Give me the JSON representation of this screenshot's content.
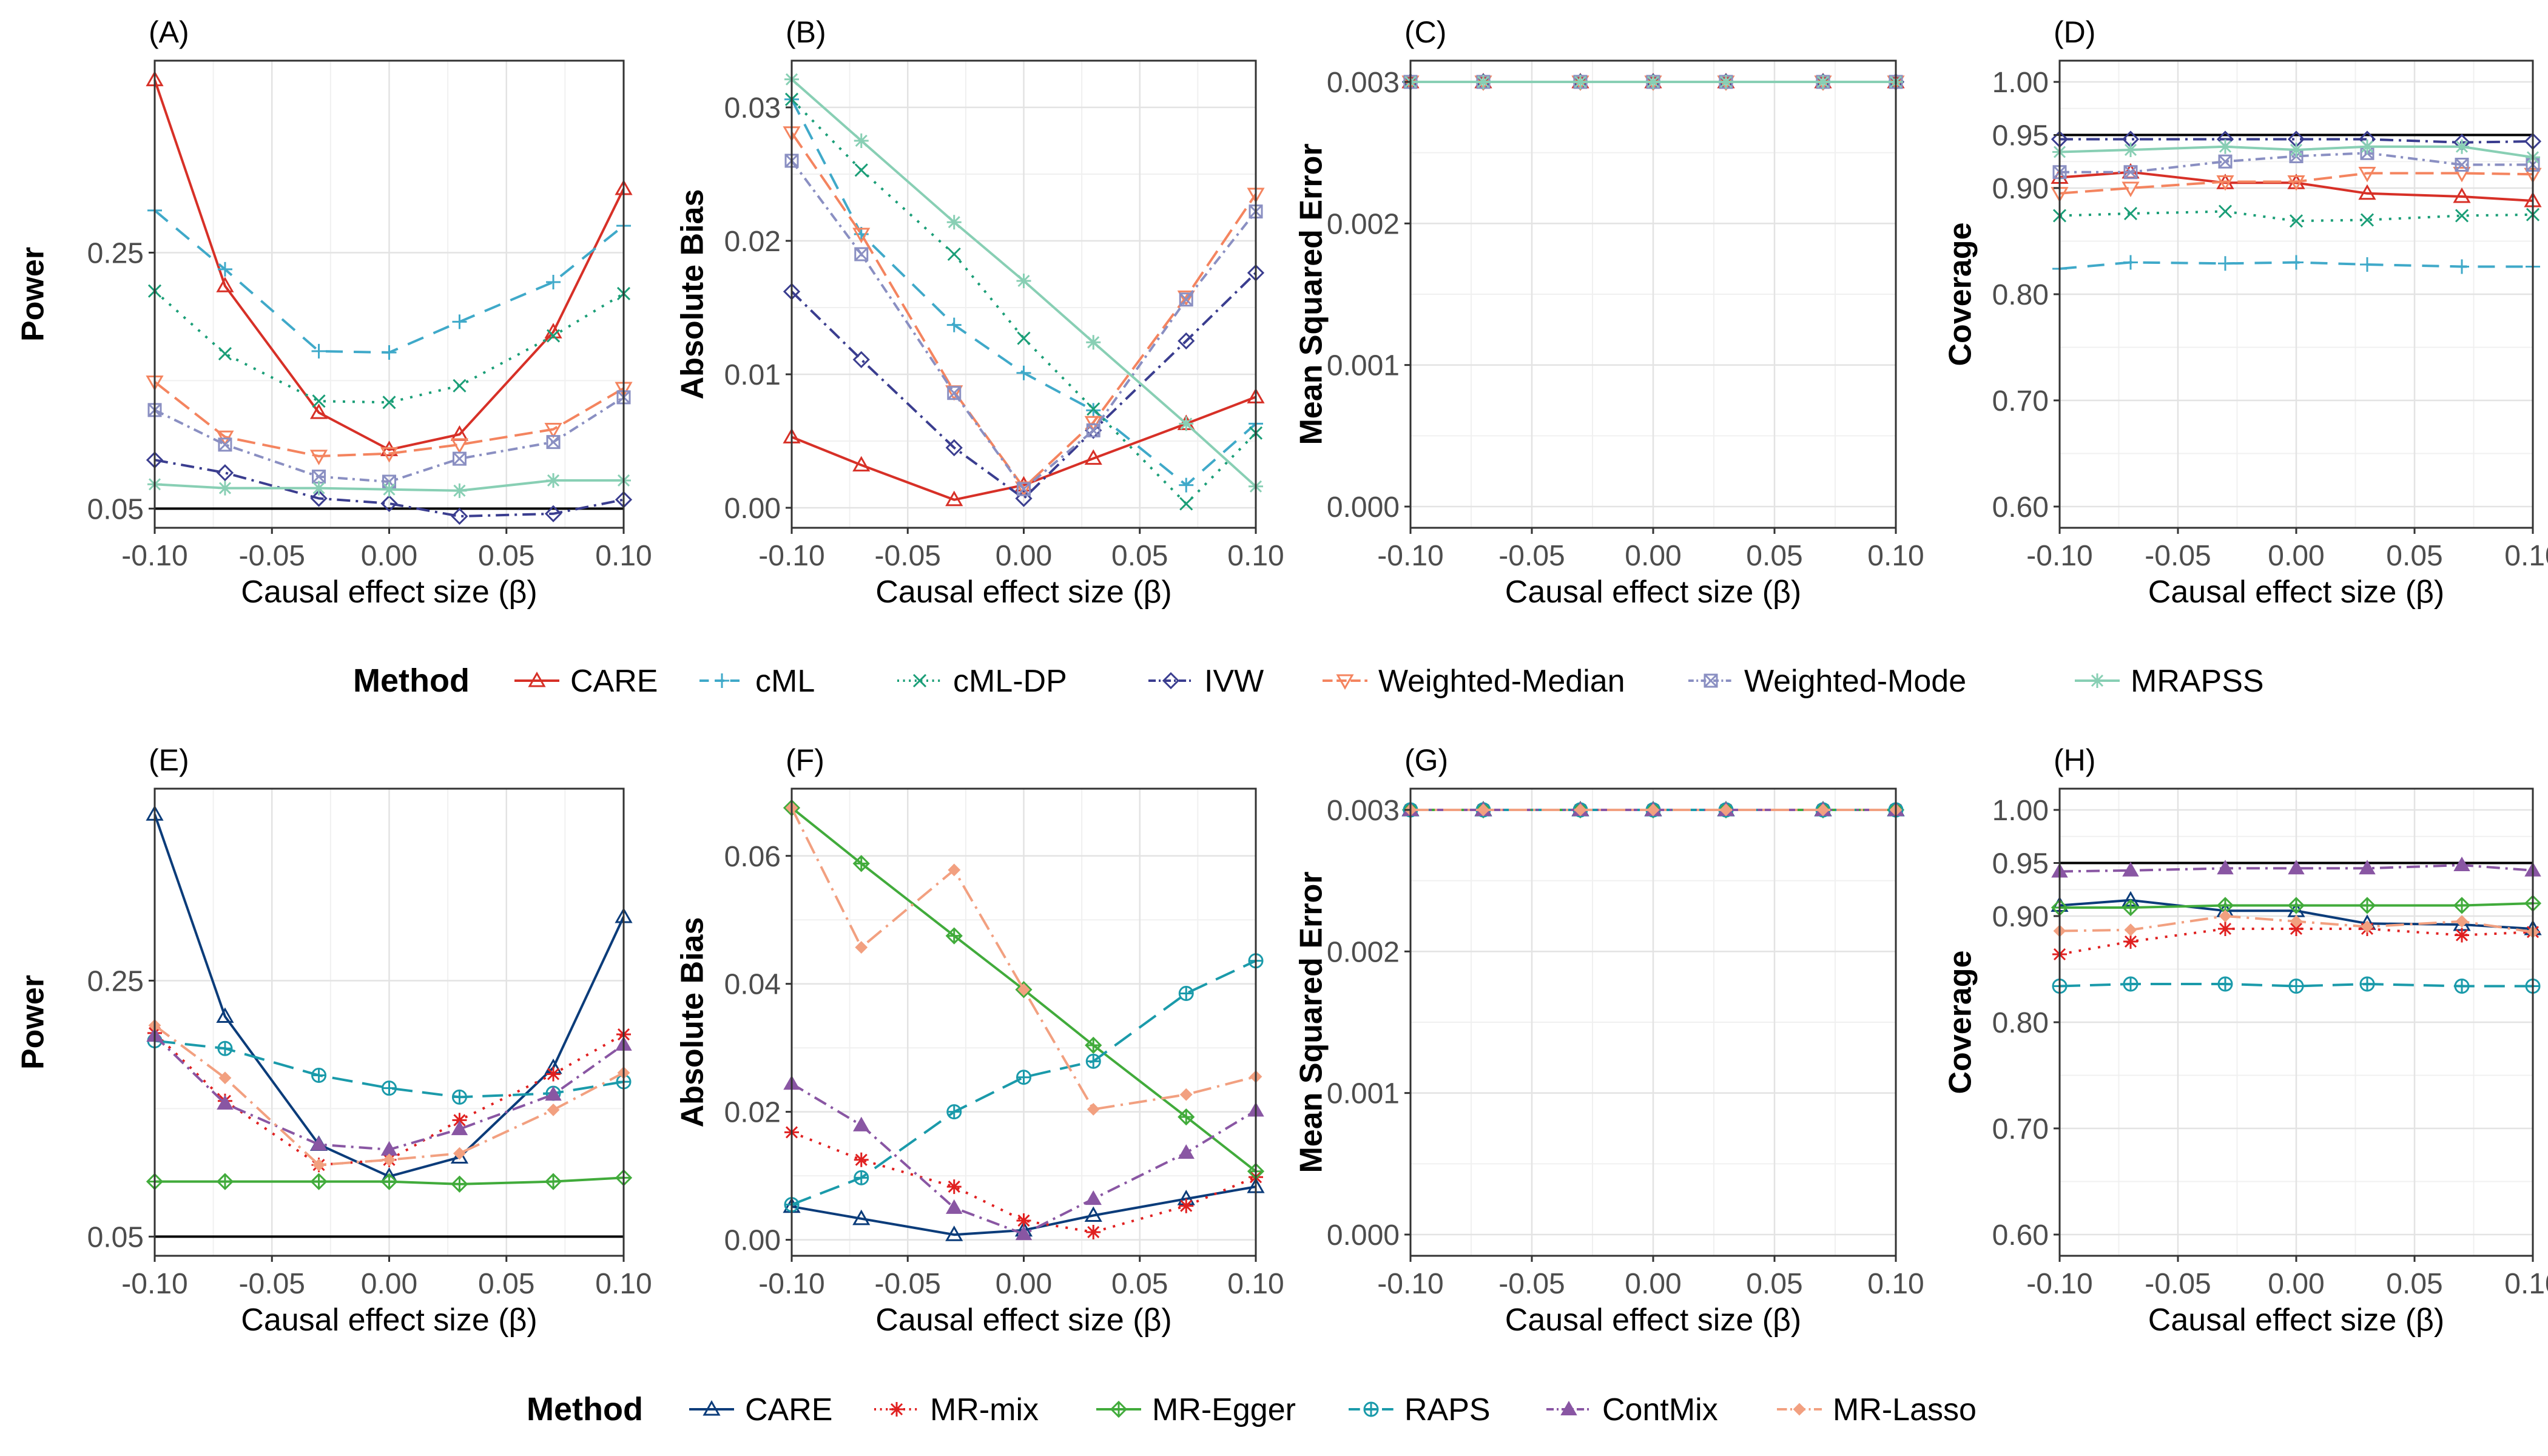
{
  "x_ticks": [
    -0.1,
    -0.05,
    0.0,
    0.05,
    0.1
  ],
  "x_tick_labels": [
    "-0.10",
    "-0.05",
    "0.00",
    "0.05",
    "0.10"
  ],
  "colors": {
    "CARE_top": "#d73027",
    "cML": "#3fa9c9",
    "cML-DP": "#1a9e77",
    "IVW": "#3a3d8f",
    "Weighted-Median": "#f4845f",
    "Weighted-Mode": "#8a8fc2",
    "MRAPSS": "#88cfb4",
    "CARE_bottom": "#0b3c7a",
    "MR-mix": "#e02020",
    "MR-Egger": "#41ab3b",
    "RAPS": "#1a9aaa",
    "ContMix": "#8956a3",
    "MR-Lasso": "#f2a080"
  },
  "legend_top": {
    "title": "Method",
    "items": [
      {
        "label": "CARE",
        "key": "CARE_top"
      },
      {
        "label": "cML",
        "key": "cML"
      },
      {
        "label": "cML-DP",
        "key": "cML-DP"
      },
      {
        "label": "IVW",
        "key": "IVW"
      },
      {
        "label": "Weighted-Median",
        "key": "Weighted-Median"
      },
      {
        "label": "Weighted-Mode",
        "key": "Weighted-Mode"
      },
      {
        "label": "MRAPSS",
        "key": "MRAPSS"
      }
    ]
  },
  "legend_bottom": {
    "title": "Method",
    "items": [
      {
        "label": "CARE",
        "key": "CARE_bottom"
      },
      {
        "label": "MR-mix",
        "key": "MR-mix"
      },
      {
        "label": "MR-Egger",
        "key": "MR-Egger"
      },
      {
        "label": "RAPS",
        "key": "RAPS"
      },
      {
        "label": "ContMix",
        "key": "ContMix"
      },
      {
        "label": "MR-Lasso",
        "key": "MR-Lasso"
      }
    ]
  },
  "chart_data": [
    {
      "panel": "(A)",
      "type": "line",
      "title": "",
      "xlabel": "Causal effect size (β)",
      "ylabel": "Power",
      "xlim": [
        -0.1,
        0.1
      ],
      "ylim": [
        0.035,
        0.4
      ],
      "yticks": [
        0.05,
        0.25
      ],
      "ytick_labels": [
        "0.05",
        "0.25"
      ],
      "hline": 0.05,
      "x": [
        -0.1,
        -0.07,
        -0.03,
        0.0,
        0.03,
        0.07,
        0.1
      ],
      "series": [
        {
          "name": "CARE",
          "key": "CARE_top",
          "values": [
            0.385,
            0.224,
            0.125,
            0.096,
            0.108,
            0.188,
            0.3
          ]
        },
        {
          "name": "cML",
          "key": "cML",
          "values": [
            0.283,
            0.237,
            0.173,
            0.172,
            0.196,
            0.227,
            0.271
          ]
        },
        {
          "name": "cML-DP",
          "key": "cML-DP",
          "values": [
            0.22,
            0.171,
            0.134,
            0.133,
            0.146,
            0.185,
            0.218
          ]
        },
        {
          "name": "IVW",
          "key": "IVW",
          "values": [
            0.088,
            0.078,
            0.058,
            0.054,
            0.044,
            0.046,
            0.057
          ]
        },
        {
          "name": "Weighted-Median",
          "key": "Weighted-Median",
          "values": [
            0.149,
            0.106,
            0.091,
            0.093,
            0.1,
            0.112,
            0.144
          ]
        },
        {
          "name": "Weighted-Mode",
          "key": "Weighted-Mode",
          "values": [
            0.127,
            0.1,
            0.075,
            0.071,
            0.089,
            0.102,
            0.137
          ]
        },
        {
          "name": "MRAPSS",
          "key": "MRAPSS",
          "values": [
            0.069,
            0.066,
            0.066,
            0.065,
            0.064,
            0.072,
            0.072
          ]
        }
      ]
    },
    {
      "panel": "(B)",
      "type": "line",
      "title": "",
      "xlabel": "Causal effect size (β)",
      "ylabel": "Absolute Bias",
      "xlim": [
        -0.1,
        0.1
      ],
      "ylim": [
        -0.0015,
        0.0335
      ],
      "yticks": [
        0.0,
        0.01,
        0.02,
        0.03
      ],
      "ytick_labels": [
        "0.00",
        "0.01",
        "0.02",
        "0.03"
      ],
      "x": [
        -0.1,
        -0.07,
        -0.03,
        0.0,
        0.03,
        0.07,
        0.1
      ],
      "series": [
        {
          "name": "CARE",
          "key": "CARE_top",
          "values": [
            0.0053,
            0.0032,
            0.0006,
            0.0017,
            0.0037,
            0.0063,
            0.0083
          ]
        },
        {
          "name": "cML",
          "key": "cML",
          "values": [
            0.0306,
            0.0205,
            0.0137,
            0.0101,
            0.0073,
            0.0017,
            0.0063
          ]
        },
        {
          "name": "cML-DP",
          "key": "cML-DP",
          "values": [
            0.0306,
            0.0253,
            0.019,
            0.0127,
            0.0074,
            0.0003,
            0.0056
          ]
        },
        {
          "name": "IVW",
          "key": "IVW",
          "values": [
            0.0162,
            0.0111,
            0.0045,
            0.0007,
            0.0058,
            0.0125,
            0.0176
          ]
        },
        {
          "name": "Weighted-Median",
          "key": "Weighted-Median",
          "values": [
            0.0281,
            0.0205,
            0.0087,
            0.0015,
            0.0064,
            0.0158,
            0.0235
          ]
        },
        {
          "name": "Weighted-Mode",
          "key": "Weighted-Mode",
          "values": [
            0.026,
            0.019,
            0.0086,
            0.0014,
            0.0058,
            0.0156,
            0.0222
          ]
        },
        {
          "name": "MRAPSS",
          "key": "MRAPSS",
          "values": [
            0.0321,
            0.0275,
            0.0214,
            0.017,
            0.0124,
            0.0063,
            0.0016
          ]
        }
      ]
    },
    {
      "panel": "(C)",
      "type": "line",
      "title": "",
      "xlabel": "Causal effect size (β)",
      "ylabel": "Mean Squared Error",
      "xlim": [
        -0.1,
        0.1
      ],
      "ylim": [
        -0.00015,
        0.00315
      ],
      "yticks": [
        0.0,
        0.001,
        0.002,
        0.003
      ],
      "ytick_labels": [
        "0.000",
        "0.001",
        "0.002",
        "0.003"
      ],
      "x": [
        -0.1,
        -0.07,
        -0.03,
        0.0,
        0.03,
        0.07,
        0.1
      ],
      "series": [
        {
          "name": "CARE",
          "key": "CARE_top",
          "values": [
            0.003,
            0.003,
            0.003,
            0.003,
            0.003,
            0.003,
            0.003
          ]
        },
        {
          "name": "cML",
          "key": "cML",
          "values": [
            0.003,
            0.003,
            0.003,
            0.003,
            0.003,
            0.003,
            0.003
          ]
        },
        {
          "name": "cML-DP",
          "key": "cML-DP",
          "values": [
            0.003,
            0.003,
            0.003,
            0.003,
            0.003,
            0.003,
            0.003
          ]
        },
        {
          "name": "IVW",
          "key": "IVW",
          "values": [
            0.003,
            0.003,
            0.003,
            0.003,
            0.003,
            0.003,
            0.003
          ]
        },
        {
          "name": "Weighted-Median",
          "key": "Weighted-Median",
          "values": [
            0.003,
            0.003,
            0.003,
            0.003,
            0.003,
            0.003,
            0.003
          ]
        },
        {
          "name": "Weighted-Mode",
          "key": "Weighted-Mode",
          "values": [
            0.003,
            0.003,
            0.003,
            0.003,
            0.003,
            0.003,
            0.003
          ]
        },
        {
          "name": "MRAPSS",
          "key": "MRAPSS",
          "values": [
            0.003,
            0.003,
            0.003,
            0.003,
            0.003,
            0.003,
            0.003
          ]
        }
      ]
    },
    {
      "panel": "(D)",
      "type": "line",
      "title": "",
      "xlabel": "Causal effect size (β)",
      "ylabel": "Coverage",
      "xlim": [
        -0.1,
        0.1
      ],
      "ylim": [
        0.58,
        1.02
      ],
      "yticks": [
        0.6,
        0.7,
        0.8,
        0.9,
        0.95,
        1.0
      ],
      "ytick_labels": [
        "0.60",
        "0.70",
        "0.80",
        "0.90",
        "0.95",
        "1.00"
      ],
      "hline": 0.95,
      "x": [
        -0.1,
        -0.07,
        -0.03,
        0.0,
        0.03,
        0.07,
        0.1
      ],
      "series": [
        {
          "name": "CARE",
          "key": "CARE_top",
          "values": [
            0.91,
            0.915,
            0.905,
            0.905,
            0.895,
            0.892,
            0.888
          ]
        },
        {
          "name": "cML",
          "key": "cML",
          "values": [
            0.824,
            0.83,
            0.829,
            0.83,
            0.828,
            0.826,
            0.826
          ]
        },
        {
          "name": "cML-DP",
          "key": "cML-DP",
          "values": [
            0.874,
            0.876,
            0.878,
            0.869,
            0.87,
            0.874,
            0.875
          ]
        },
        {
          "name": "IVW",
          "key": "IVW",
          "values": [
            0.946,
            0.946,
            0.946,
            0.946,
            0.946,
            0.943,
            0.944
          ]
        },
        {
          "name": "Weighted-Median",
          "key": "Weighted-Median",
          "values": [
            0.895,
            0.9,
            0.906,
            0.906,
            0.914,
            0.914,
            0.913
          ]
        },
        {
          "name": "Weighted-Mode",
          "key": "Weighted-Mode",
          "values": [
            0.915,
            0.915,
            0.925,
            0.93,
            0.933,
            0.922,
            0.922
          ]
        },
        {
          "name": "MRAPSS",
          "key": "MRAPSS",
          "values": [
            0.934,
            0.936,
            0.939,
            0.936,
            0.939,
            0.939,
            0.929
          ]
        }
      ]
    },
    {
      "panel": "(E)",
      "type": "line",
      "title": "",
      "xlabel": "Causal effect size (β)",
      "ylabel": "Power",
      "xlim": [
        -0.1,
        0.1
      ],
      "ylim": [
        0.035,
        0.4
      ],
      "yticks": [
        0.05,
        0.25
      ],
      "ytick_labels": [
        "0.05",
        "0.25"
      ],
      "hline": 0.05,
      "x": [
        -0.1,
        -0.07,
        -0.03,
        0.0,
        0.03,
        0.07,
        0.1
      ],
      "series": [
        {
          "name": "CARE",
          "key": "CARE_bottom",
          "values": [
            0.38,
            0.222,
            0.122,
            0.097,
            0.112,
            0.182,
            0.3
          ]
        },
        {
          "name": "MR-mix",
          "key": "MR-mix",
          "values": [
            0.209,
            0.156,
            0.106,
            0.11,
            0.141,
            0.177,
            0.208
          ]
        },
        {
          "name": "MR-Egger",
          "key": "MR-Egger",
          "values": [
            0.093,
            0.093,
            0.093,
            0.093,
            0.091,
            0.093,
            0.096
          ]
        },
        {
          "name": "RAPS",
          "key": "RAPS",
          "values": [
            0.203,
            0.197,
            0.176,
            0.166,
            0.159,
            0.162,
            0.171
          ]
        },
        {
          "name": "ContMix",
          "key": "ContMix",
          "values": [
            0.207,
            0.154,
            0.122,
            0.118,
            0.134,
            0.161,
            0.2
          ]
        },
        {
          "name": "MR-Lasso",
          "key": "MR-Lasso",
          "values": [
            0.215,
            0.174,
            0.106,
            0.11,
            0.115,
            0.149,
            0.178
          ]
        }
      ]
    },
    {
      "panel": "(F)",
      "type": "line",
      "title": "",
      "xlabel": "Causal effect size (β)",
      "ylabel": "Absolute Bias",
      "xlim": [
        -0.1,
        0.1
      ],
      "ylim": [
        -0.0025,
        0.0705
      ],
      "yticks": [
        0.0,
        0.02,
        0.04,
        0.06
      ],
      "ytick_labels": [
        "0.00",
        "0.02",
        "0.04",
        "0.06"
      ],
      "x": [
        -0.1,
        -0.07,
        -0.03,
        0.0,
        0.03,
        0.07,
        0.1
      ],
      "series": [
        {
          "name": "CARE",
          "key": "CARE_bottom",
          "values": [
            0.0052,
            0.0033,
            0.0008,
            0.0015,
            0.0038,
            0.0064,
            0.0083
          ]
        },
        {
          "name": "MR-mix",
          "key": "MR-mix",
          "values": [
            0.0168,
            0.0125,
            0.0083,
            0.003,
            0.0012,
            0.0053,
            0.0098
          ]
        },
        {
          "name": "MR-Egger",
          "key": "MR-Egger",
          "values": [
            0.0675,
            0.0588,
            0.0475,
            0.0391,
            0.0304,
            0.0192,
            0.0107
          ]
        },
        {
          "name": "RAPS",
          "key": "RAPS",
          "values": [
            0.0055,
            0.0097,
            0.02,
            0.0254,
            0.0279,
            0.0385,
            0.0436
          ]
        },
        {
          "name": "ContMix",
          "key": "ContMix",
          "values": [
            0.0244,
            0.0179,
            0.005,
            0.0009,
            0.0064,
            0.0136,
            0.0202
          ]
        },
        {
          "name": "MR-Lasso",
          "key": "MR-Lasso",
          "values": [
            0.0675,
            0.0457,
            0.0578,
            0.0391,
            0.0204,
            0.0227,
            0.0255
          ]
        }
      ]
    },
    {
      "panel": "(G)",
      "type": "line",
      "title": "",
      "xlabel": "Causal effect size (β)",
      "ylabel": "Mean Squared Error",
      "xlim": [
        -0.1,
        0.1
      ],
      "ylim": [
        -0.00015,
        0.00315
      ],
      "yticks": [
        0.0,
        0.001,
        0.002,
        0.003
      ],
      "ytick_labels": [
        "0.000",
        "0.001",
        "0.002",
        "0.003"
      ],
      "x": [
        -0.1,
        -0.07,
        -0.03,
        0.0,
        0.03,
        0.07,
        0.1
      ],
      "series": [
        {
          "name": "CARE",
          "key": "CARE_bottom",
          "values": [
            0.003,
            0.003,
            0.003,
            0.003,
            0.003,
            0.003,
            0.003
          ]
        },
        {
          "name": "MR-mix",
          "key": "MR-mix",
          "values": [
            0.003,
            0.003,
            0.003,
            0.003,
            0.003,
            0.003,
            0.003
          ]
        },
        {
          "name": "MR-Egger",
          "key": "MR-Egger",
          "values": [
            0.003,
            0.003,
            0.003,
            0.003,
            0.003,
            0.003,
            0.003
          ]
        },
        {
          "name": "RAPS",
          "key": "RAPS",
          "values": [
            0.003,
            0.003,
            0.003,
            0.003,
            0.003,
            0.003,
            0.003
          ]
        },
        {
          "name": "ContMix",
          "key": "ContMix",
          "values": [
            0.003,
            0.003,
            0.003,
            0.003,
            0.003,
            0.003,
            0.003
          ]
        },
        {
          "name": "MR-Lasso",
          "key": "MR-Lasso",
          "values": [
            0.003,
            0.003,
            0.003,
            0.003,
            0.003,
            0.003,
            0.003
          ]
        }
      ]
    },
    {
      "panel": "(H)",
      "type": "line",
      "title": "",
      "xlabel": "Causal effect size (β)",
      "ylabel": "Coverage",
      "xlim": [
        -0.1,
        0.1
      ],
      "ylim": [
        0.58,
        1.02
      ],
      "yticks": [
        0.6,
        0.7,
        0.8,
        0.9,
        0.95,
        1.0
      ],
      "ytick_labels": [
        "0.60",
        "0.70",
        "0.80",
        "0.90",
        "0.95",
        "1.00"
      ],
      "hline": 0.95,
      "x": [
        -0.1,
        -0.07,
        -0.03,
        0.0,
        0.03,
        0.07,
        0.1
      ],
      "series": [
        {
          "name": "CARE",
          "key": "CARE_bottom",
          "values": [
            0.91,
            0.915,
            0.905,
            0.905,
            0.893,
            0.892,
            0.888
          ]
        },
        {
          "name": "MR-mix",
          "key": "MR-mix",
          "values": [
            0.864,
            0.876,
            0.888,
            0.888,
            0.888,
            0.882,
            0.885
          ]
        },
        {
          "name": "MR-Egger",
          "key": "MR-Egger",
          "values": [
            0.908,
            0.908,
            0.91,
            0.91,
            0.91,
            0.91,
            0.912
          ]
        },
        {
          "name": "RAPS",
          "key": "RAPS",
          "values": [
            0.834,
            0.836,
            0.836,
            0.834,
            0.836,
            0.834,
            0.834
          ]
        },
        {
          "name": "ContMix",
          "key": "ContMix",
          "values": [
            0.942,
            0.943,
            0.945,
            0.945,
            0.945,
            0.948,
            0.943
          ]
        },
        {
          "name": "MR-Lasso",
          "key": "MR-Lasso",
          "values": [
            0.886,
            0.887,
            0.9,
            0.895,
            0.89,
            0.895,
            0.885
          ]
        }
      ]
    }
  ]
}
